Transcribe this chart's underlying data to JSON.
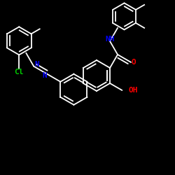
{
  "background_color": "#000000",
  "bond_color": "#ffffff",
  "atom_colors": {
    "N": "#0000ff",
    "O": "#ff0000",
    "Cl": "#00cc00",
    "C": "#ffffff"
  },
  "figsize": [
    2.5,
    2.5
  ],
  "dpi": 100
}
